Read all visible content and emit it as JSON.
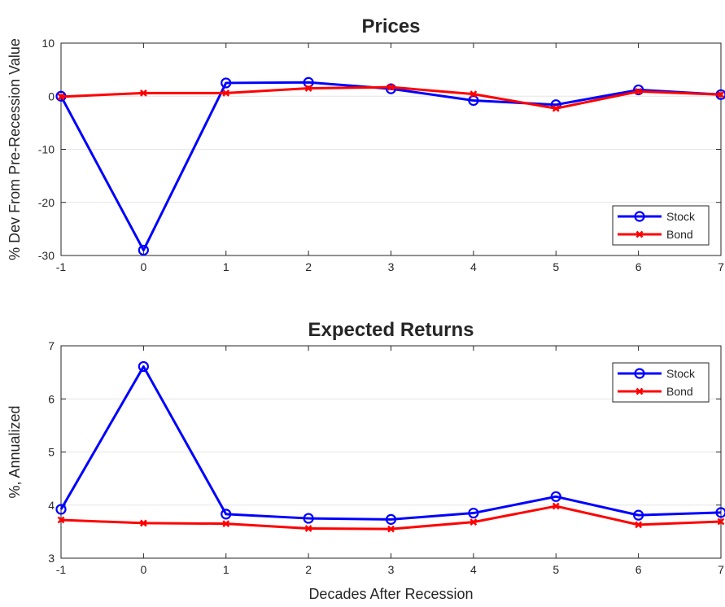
{
  "chart_data": [
    {
      "type": "line",
      "title": "Prices",
      "xlabel": "",
      "ylabel": "% Dev From Pre-Recession Value",
      "x": [
        -1,
        0,
        1,
        2,
        3,
        4,
        5,
        6,
        7
      ],
      "xlim": [
        -1,
        7
      ],
      "ylim": [
        -30,
        10
      ],
      "xticks": [
        "-1",
        "0",
        "1",
        "2",
        "3",
        "4",
        "5",
        "6",
        "7"
      ],
      "yticks": [
        10,
        0,
        -10,
        -20,
        -30
      ],
      "grid": true,
      "legend_position": "bottom-right",
      "series": [
        {
          "name": "Stock",
          "color": "#0000ff",
          "marker": "circle",
          "values": [
            0.0,
            -29.0,
            2.5,
            2.6,
            1.4,
            -0.8,
            -1.6,
            1.2,
            0.3
          ]
        },
        {
          "name": "Bond",
          "color": "#ff0000",
          "marker": "x",
          "values": [
            -0.1,
            0.6,
            0.6,
            1.5,
            1.7,
            0.4,
            -2.3,
            0.9,
            0.3
          ]
        }
      ]
    },
    {
      "type": "line",
      "title": "Expected Returns",
      "xlabel": "Decades After Recession",
      "ylabel": "%, Annualized",
      "x": [
        -1,
        0,
        1,
        2,
        3,
        4,
        5,
        6,
        7
      ],
      "xlim": [
        -1,
        7
      ],
      "ylim": [
        3,
        7
      ],
      "xticks": [
        "-1",
        "0",
        "1",
        "2",
        "3",
        "4",
        "5",
        "6",
        "7"
      ],
      "yticks": [
        7,
        6,
        5,
        4,
        3
      ],
      "grid": true,
      "legend_position": "top-right",
      "series": [
        {
          "name": "Stock",
          "color": "#0000ff",
          "marker": "circle",
          "values": [
            3.92,
            6.61,
            3.83,
            3.75,
            3.73,
            3.85,
            4.16,
            3.81,
            3.86
          ]
        },
        {
          "name": "Bond",
          "color": "#ff0000",
          "marker": "x",
          "values": [
            3.72,
            3.66,
            3.65,
            3.56,
            3.55,
            3.68,
            3.98,
            3.63,
            3.69
          ]
        }
      ]
    }
  ]
}
